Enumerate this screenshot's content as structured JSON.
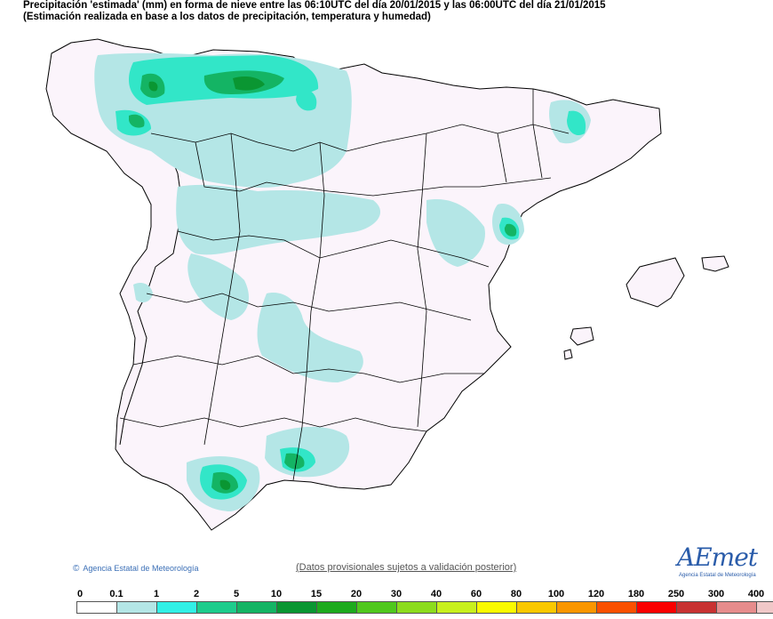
{
  "header": {
    "title": "Precipitación 'estimada' (mm) en forma de nieve entre las 06:10UTC del día 20/01/2015 y las 06:00UTC del día 21/01/2015",
    "subtitle": "(Estimación realizada en base a los datos de precipitación, temperatura y humedad)"
  },
  "footer": {
    "credit": "Agencia Estatal de Meteorología",
    "disclaimer": "(Datos provisionales sujetos a validación posterior)",
    "logo_text": "AEmet",
    "logo_subtext": "Agencia Estatal de Meteorología"
  },
  "legend": {
    "labels": [
      "0",
      "0.1",
      "1",
      "2",
      "5",
      "10",
      "15",
      "20",
      "30",
      "40",
      "60",
      "80",
      "100",
      "120",
      "180",
      "250",
      "300",
      "400"
    ],
    "colors": [
      "#ffffff",
      "#b4e6e6",
      "#32f0e6",
      "#1ecc8c",
      "#14b464",
      "#0a9632",
      "#1eaa1e",
      "#50c81e",
      "#8cdc1e",
      "#c8f01e",
      "#fafa00",
      "#fac800",
      "#fa9600",
      "#fa5000",
      "#fa0000",
      "#c83232",
      "#e68c8c",
      "#f0c8c8"
    ]
  },
  "colors": {
    "land": "#fbf4fb",
    "border": "#000000",
    "light_snow": "#b4e6e6",
    "medium_snow": "#32e6c8",
    "heavy_snow": "#14b464",
    "very_heavy_snow": "#0a9632"
  }
}
